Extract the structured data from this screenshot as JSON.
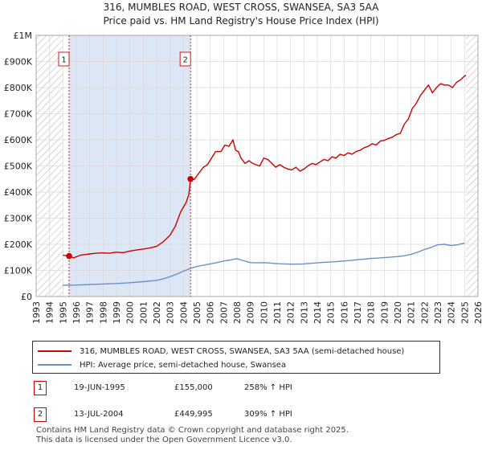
{
  "header": {
    "title_line1": "316, MUMBLES ROAD, WEST CROSS, SWANSEA, SA3 5AA",
    "title_line2": "Price paid vs. HM Land Registry's House Price Index (HPI)"
  },
  "chart_data": {
    "type": "line",
    "title": "316, MUMBLES ROAD, WEST CROSS, SWANSEA, SA3 5AA — Price paid vs. HM Land Registry's House Price Index (HPI)",
    "xlabel": "",
    "ylabel": "",
    "xlim": [
      1993,
      2026
    ],
    "ylim": [
      0,
      1000000
    ],
    "x_ticks": [
      1993,
      1994,
      1995,
      1996,
      1997,
      1998,
      1999,
      2000,
      2001,
      2002,
      2003,
      2004,
      2005,
      2006,
      2007,
      2008,
      2009,
      2010,
      2011,
      2012,
      2013,
      2014,
      2015,
      2016,
      2017,
      2018,
      2019,
      2020,
      2021,
      2022,
      2023,
      2024,
      2025,
      2026
    ],
    "y_ticks": [
      0,
      100000,
      200000,
      300000,
      400000,
      500000,
      600000,
      700000,
      800000,
      900000,
      1000000
    ],
    "y_tick_labels": [
      "£0",
      "£100K",
      "£200K",
      "£300K",
      "£400K",
      "£500K",
      "£600K",
      "£700K",
      "£800K",
      "£900K",
      "£1M"
    ],
    "hatched_ranges": [
      [
        1993,
        1995.0
      ],
      [
        2025.1,
        2026
      ]
    ],
    "grid": true,
    "series": [
      {
        "name": "316, MUMBLES ROAD, WEST CROSS, SWANSEA, SA3 5AA (semi-detached house)",
        "color": "#cc0000",
        "x": [
          1995.0,
          1995.46,
          1995.8,
          1996.3,
          1997.0,
          1997.5,
          1998.0,
          1998.5,
          1999.0,
          1999.5,
          2000.0,
          2000.5,
          2001.0,
          2001.5,
          2002.0,
          2002.5,
          2003.0,
          2003.4,
          2003.8,
          2004.2,
          2004.4,
          2004.53,
          2004.8,
          2005.2,
          2005.5,
          2005.8,
          2006.1,
          2006.4,
          2006.8,
          2007.1,
          2007.4,
          2007.7,
          2007.9,
          2008.1,
          2008.3,
          2008.6,
          2008.9,
          2009.1,
          2009.4,
          2009.7,
          2010.0,
          2010.3,
          2010.6,
          2010.9,
          2011.2,
          2011.5,
          2011.8,
          2012.1,
          2012.4,
          2012.7,
          2013.0,
          2013.3,
          2013.6,
          2013.9,
          2014.2,
          2014.5,
          2014.8,
          2015.1,
          2015.4,
          2015.7,
          2016.0,
          2016.3,
          2016.6,
          2016.9,
          2017.2,
          2017.5,
          2017.8,
          2018.1,
          2018.4,
          2018.7,
          2019.0,
          2019.3,
          2019.6,
          2019.9,
          2020.2,
          2020.5,
          2020.8,
          2021.1,
          2021.4,
          2021.7,
          2022.0,
          2022.3,
          2022.6,
          2022.9,
          2023.2,
          2023.5,
          2023.8,
          2024.1,
          2024.4,
          2024.7,
          2024.9,
          2025.1
        ],
        "y": [
          158000,
          155000,
          148000,
          158000,
          163000,
          166000,
          167000,
          166000,
          170000,
          168000,
          174000,
          178000,
          182000,
          186000,
          192000,
          210000,
          235000,
          270000,
          325000,
          360000,
          390000,
          449995,
          448000,
          475000,
          495000,
          505000,
          530000,
          555000,
          555000,
          580000,
          575000,
          600000,
          560000,
          555000,
          530000,
          510000,
          520000,
          512000,
          505000,
          500000,
          530000,
          525000,
          510000,
          495000,
          505000,
          495000,
          488000,
          485000,
          495000,
          480000,
          488000,
          500000,
          510000,
          505000,
          515000,
          525000,
          520000,
          535000,
          530000,
          545000,
          540000,
          550000,
          545000,
          555000,
          560000,
          570000,
          575000,
          585000,
          580000,
          595000,
          598000,
          605000,
          610000,
          620000,
          625000,
          660000,
          680000,
          720000,
          740000,
          770000,
          790000,
          810000,
          780000,
          800000,
          815000,
          810000,
          810000,
          800000,
          820000,
          830000,
          840000,
          848000
        ]
      },
      {
        "name": "HPI: Average price, semi-detached house, Swansea",
        "color": "#6b8fc9",
        "x": [
          1995.0,
          1996.0,
          1997.0,
          1998.0,
          1999.0,
          2000.0,
          2001.0,
          2002.0,
          2002.5,
          2003.0,
          2003.5,
          2004.0,
          2004.5,
          2005.0,
          2005.5,
          2006.0,
          2006.5,
          2007.0,
          2007.5,
          2008.0,
          2008.5,
          2009.0,
          2009.5,
          2010.0,
          2010.5,
          2011.0,
          2011.5,
          2012.0,
          2012.5,
          2013.0,
          2013.5,
          2014.0,
          2014.5,
          2015.0,
          2015.5,
          2016.0,
          2016.5,
          2017.0,
          2017.5,
          2018.0,
          2018.5,
          2019.0,
          2019.5,
          2020.0,
          2020.5,
          2021.0,
          2021.5,
          2022.0,
          2022.5,
          2023.0,
          2023.5,
          2024.0,
          2024.5,
          2025.0
        ],
        "y": [
          43000,
          44000,
          46000,
          48000,
          50000,
          53000,
          57000,
          62000,
          68000,
          76000,
          86000,
          97000,
          107000,
          115000,
          120000,
          125000,
          130000,
          136000,
          140000,
          145000,
          137000,
          130000,
          129000,
          130000,
          128000,
          126000,
          125000,
          124000,
          124000,
          125000,
          127000,
          129000,
          131000,
          132000,
          134000,
          136000,
          138000,
          141000,
          143000,
          146000,
          147000,
          149000,
          151000,
          153000,
          156000,
          162000,
          170000,
          180000,
          188000,
          198000,
          200000,
          195000,
          198000,
          205000
        ]
      }
    ],
    "markers": [
      {
        "label": "1",
        "x": 1995.46,
        "y": 155000,
        "color": "#cc0000"
      },
      {
        "label": "2",
        "x": 2004.53,
        "y": 449995,
        "color": "#cc0000"
      }
    ]
  },
  "legend": {
    "items": [
      {
        "label": "316, MUMBLES ROAD, WEST CROSS, SWANSEA, SA3 5AA (semi-detached house)",
        "color": "#cc0000"
      },
      {
        "label": "HPI: Average price, semi-detached house, Swansea",
        "color": "#6b8fc9"
      }
    ]
  },
  "transactions": [
    {
      "badge": "1",
      "date": "19-JUN-1995",
      "price": "£155,000",
      "hpi": "258% ↑ HPI"
    },
    {
      "badge": "2",
      "date": "13-JUL-2004",
      "price": "£449,995",
      "hpi": "309% ↑ HPI"
    }
  ],
  "footer": {
    "line1": "Contains HM Land Registry data © Crown copyright and database right 2025.",
    "line2": "This data is licensed under the Open Government Licence v3.0."
  }
}
